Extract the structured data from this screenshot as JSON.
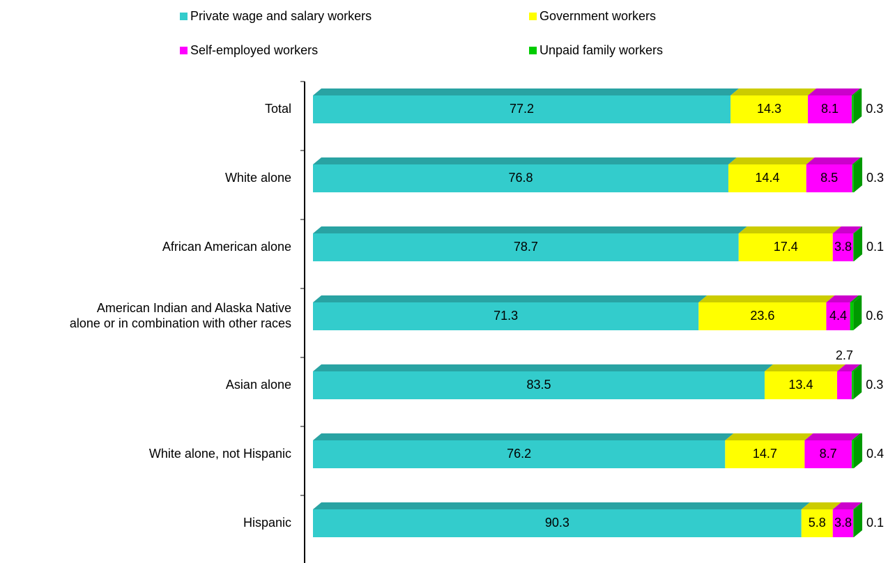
{
  "chart_data": {
    "type": "bar",
    "orientation": "horizontal",
    "stacked": true,
    "style": "3d",
    "legend_position": "top",
    "xlim": [
      0,
      100
    ],
    "categories": [
      "Total",
      "White alone",
      "African American alone",
      "American Indian and Alaska Native\nalone or in combination with other races",
      "Asian alone",
      "White alone, not Hispanic",
      "Hispanic"
    ],
    "series": [
      {
        "name": "Private wage and salary workers",
        "color": "#33CCCC",
        "values": [
          77.2,
          76.8,
          78.7,
          71.3,
          83.5,
          76.2,
          90.3
        ]
      },
      {
        "name": "Government workers",
        "color": "#FFFF00",
        "values": [
          14.3,
          14.4,
          17.4,
          23.6,
          13.4,
          14.7,
          5.8
        ]
      },
      {
        "name": "Self-employed workers",
        "color": "#FF00FF",
        "values": [
          8.1,
          8.5,
          3.8,
          4.4,
          2.7,
          8.7,
          3.8
        ]
      },
      {
        "name": "Unpaid family workers",
        "color": "#00CC00",
        "values": [
          0.3,
          0.3,
          0.1,
          0.6,
          0.3,
          0.4,
          0.1
        ]
      }
    ]
  }
}
